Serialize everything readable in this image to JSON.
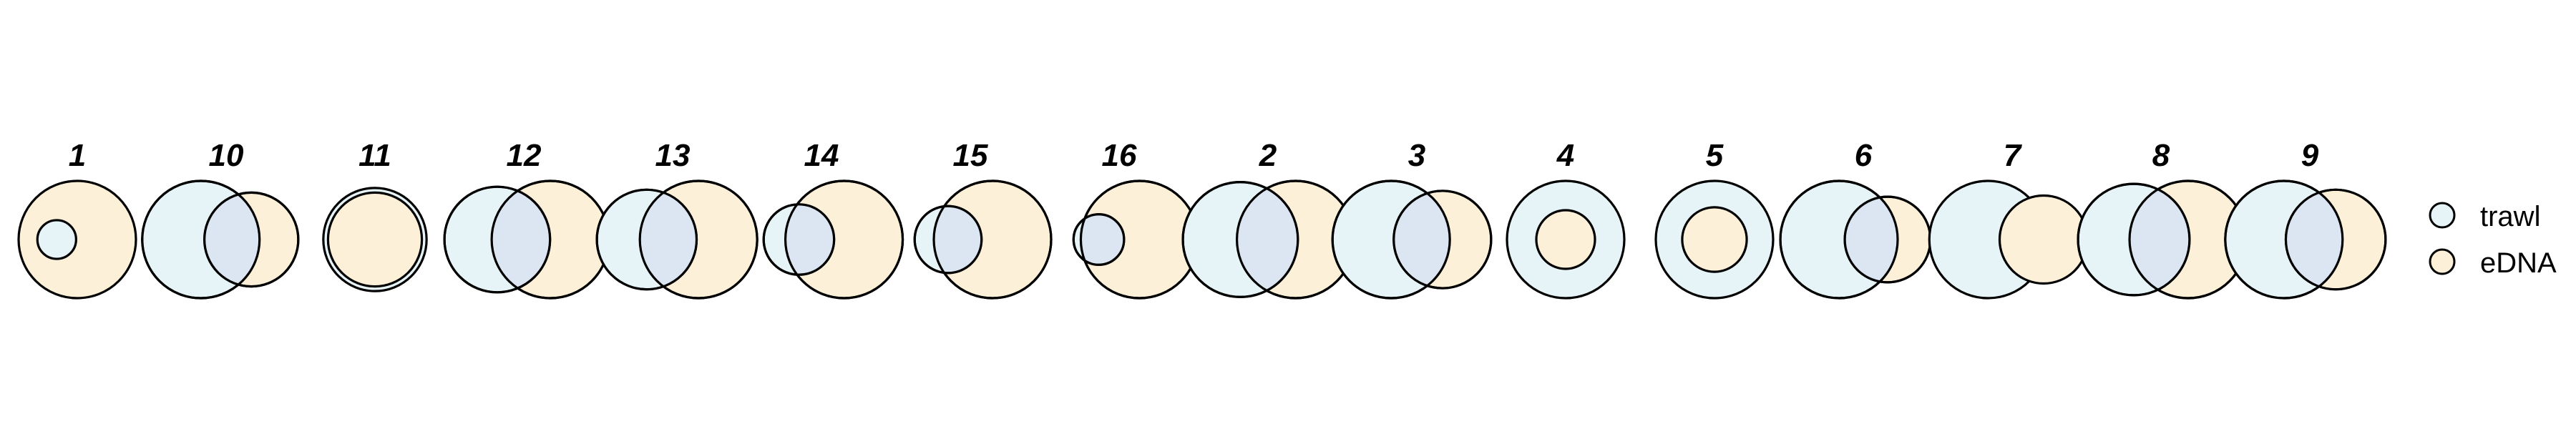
{
  "colors": {
    "trawl": "#E6F4F8",
    "edna": "#FDF0D9",
    "overlap": "#DCE6F2",
    "stroke": "#000000"
  },
  "diagram": {
    "type": "venn-series",
    "panels": [
      {
        "label": "1",
        "trawl": 0.33,
        "edna": 1.0,
        "overlap": "trawl_inside_edna"
      },
      {
        "label": "10",
        "trawl": 1.0,
        "edna": 0.8,
        "overlap": "partial"
      },
      {
        "label": "11",
        "trawl": 0.88,
        "edna": 0.8,
        "overlap": "edna_inside_trawl"
      },
      {
        "label": "12",
        "trawl": 0.9,
        "edna": 1.0,
        "overlap": "partial"
      },
      {
        "label": "13",
        "trawl": 0.85,
        "edna": 1.0,
        "overlap": "partial"
      },
      {
        "label": "14",
        "trawl": 0.6,
        "edna": 1.0,
        "overlap": "partial"
      },
      {
        "label": "15",
        "trawl": 0.57,
        "edna": 1.0,
        "overlap": "partial"
      },
      {
        "label": "16",
        "trawl": 0.43,
        "edna": 1.0,
        "overlap": "partial"
      },
      {
        "label": "2",
        "trawl": 0.98,
        "edna": 1.0,
        "overlap": "partial"
      },
      {
        "label": "3",
        "trawl": 1.0,
        "edna": 0.83,
        "overlap": "partial"
      },
      {
        "label": "4",
        "trawl": 1.0,
        "edna": 0.5,
        "overlap": "edna_inside_trawl"
      },
      {
        "label": "5",
        "trawl": 1.0,
        "edna": 0.55,
        "overlap": "edna_inside_trawl"
      },
      {
        "label": "6",
        "trawl": 1.0,
        "edna": 0.73,
        "overlap": "partial"
      },
      {
        "label": "7",
        "trawl": 1.0,
        "edna": 0.75,
        "overlap": "none"
      },
      {
        "label": "8",
        "trawl": 0.95,
        "edna": 1.0,
        "overlap": "partial"
      },
      {
        "label": "9",
        "trawl": 1.0,
        "edna": 0.85,
        "overlap": "partial"
      }
    ]
  },
  "legend": {
    "items": [
      {
        "key": "trawl",
        "label": "trawl"
      },
      {
        "key": "edna",
        "label": "eDNA"
      }
    ]
  }
}
